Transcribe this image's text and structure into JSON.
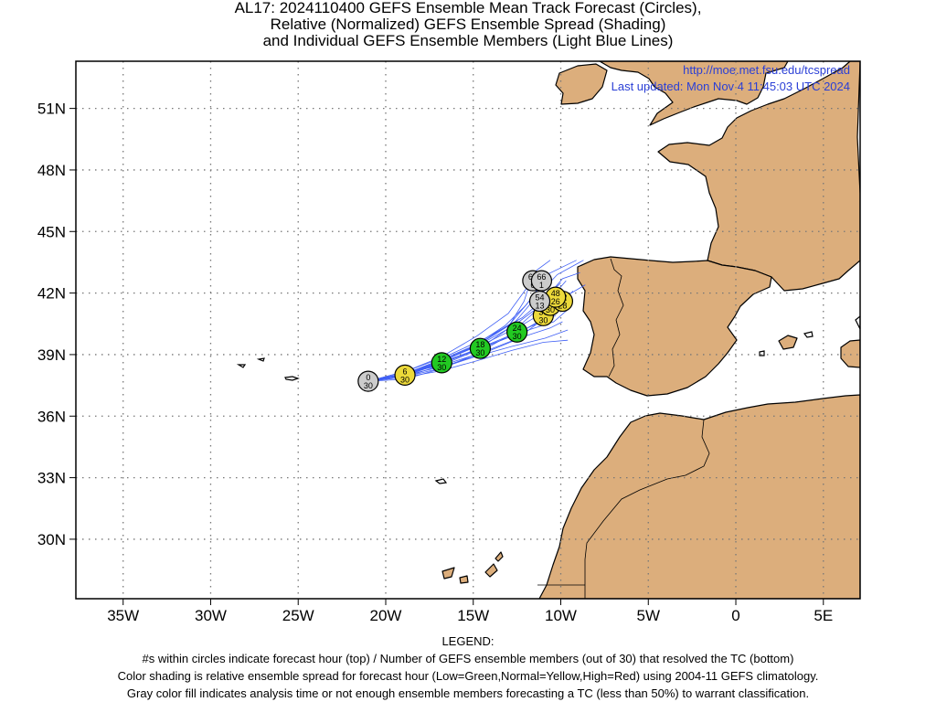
{
  "title": {
    "line1": "AL17: 2024110400 GEFS Ensemble Mean Track Forecast (Circles),",
    "line2": "Relative (Normalized) GEFS Ensemble Spread (Shading)",
    "line3": "and Individual GEFS Ensemble Members (Light Blue Lines)"
  },
  "map": {
    "url_text": "http://moe.met.fsu.edu/tcspread",
    "updated_text": "Last updated: Mon Nov 4 11:45:03 UTC 2024",
    "lon_ticks": [
      {
        "value": -35,
        "label": "35W"
      },
      {
        "value": -30,
        "label": "30W"
      },
      {
        "value": -25,
        "label": "25W"
      },
      {
        "value": -20,
        "label": "20W"
      },
      {
        "value": -15,
        "label": "15W"
      },
      {
        "value": -10,
        "label": "10W"
      },
      {
        "value": -5,
        "label": "5W"
      },
      {
        "value": 0,
        "label": "0"
      },
      {
        "value": 5,
        "label": "5E"
      }
    ],
    "lat_ticks": [
      {
        "value": 51,
        "label": "51N"
      },
      {
        "value": 48,
        "label": "48N"
      },
      {
        "value": 45,
        "label": "45N"
      },
      {
        "value": 42,
        "label": "42N"
      },
      {
        "value": 39,
        "label": "39N"
      },
      {
        "value": 36,
        "label": "36N"
      },
      {
        "value": 33,
        "label": "33N"
      },
      {
        "value": 30,
        "label": "30N"
      }
    ],
    "lon_range": [
      -37.7,
      7.1
    ],
    "lat_range": [
      27.1,
      53.3
    ],
    "colors": {
      "land": "#dcae7c",
      "coast": "#000000",
      "member_tracks": "#3f5ff5",
      "low_spread": "#22c922",
      "normal_spread": "#ecd93a",
      "high_spread": "#e02020",
      "analysis_gray": "#cccccc"
    },
    "mean_track": [
      {
        "hour": "0",
        "members": "30",
        "lon": -21.0,
        "lat": 37.7,
        "spread": "gray"
      },
      {
        "hour": "6",
        "members": "30",
        "lon": -18.9,
        "lat": 38.0,
        "spread": "normal"
      },
      {
        "hour": "12",
        "members": "30",
        "lon": -16.8,
        "lat": 38.6,
        "spread": "low"
      },
      {
        "hour": "18",
        "members": "30",
        "lon": -14.6,
        "lat": 39.3,
        "spread": "low"
      },
      {
        "hour": "24",
        "members": "30",
        "lon": -12.5,
        "lat": 40.1,
        "spread": "low"
      },
      {
        "hour": "30",
        "members": "30",
        "lon": -11.0,
        "lat": 40.9,
        "spread": "normal"
      },
      {
        "hour": "36",
        "members": "30",
        "lon": -10.6,
        "lat": 41.4,
        "spread": "normal"
      },
      {
        "hour": "42",
        "members": "28",
        "lon": -9.9,
        "lat": 41.6,
        "spread": "normal"
      },
      {
        "hour": "48",
        "members": "26",
        "lon": -10.3,
        "lat": 41.8,
        "spread": "normal"
      },
      {
        "hour": "54",
        "members": "13",
        "lon": -11.2,
        "lat": 41.6,
        "spread": "gray"
      },
      {
        "hour": "60",
        "members": "6",
        "lon": -11.6,
        "lat": 42.6,
        "spread": "gray"
      },
      {
        "hour": "66",
        "members": "1",
        "lon": -11.1,
        "lat": 42.6,
        "spread": "gray"
      }
    ],
    "member_tracks": [
      [
        [
          -21.0,
          37.7
        ],
        [
          -18.9,
          38.0
        ],
        [
          -16.8,
          38.4
        ],
        [
          -14.6,
          39.0
        ],
        [
          -12.6,
          39.7
        ],
        [
          -11.2,
          40.6
        ],
        [
          -10.6,
          41.7
        ],
        [
          -9.7,
          42.6
        ]
      ],
      [
        [
          -21.0,
          37.7
        ],
        [
          -18.9,
          38.1
        ],
        [
          -16.8,
          38.7
        ],
        [
          -14.7,
          39.5
        ],
        [
          -12.9,
          40.5
        ],
        [
          -11.7,
          41.7
        ],
        [
          -10.8,
          42.9
        ],
        [
          -9.1,
          43.6
        ]
      ],
      [
        [
          -21.0,
          37.7
        ],
        [
          -18.8,
          38.1
        ],
        [
          -16.7,
          38.8
        ],
        [
          -14.5,
          39.6
        ],
        [
          -12.6,
          40.6
        ],
        [
          -11.3,
          41.9
        ],
        [
          -10.2,
          42.9
        ],
        [
          -8.7,
          43.6
        ]
      ],
      [
        [
          -21.0,
          37.7
        ],
        [
          -18.9,
          37.9
        ],
        [
          -16.8,
          38.5
        ],
        [
          -14.8,
          39.2
        ],
        [
          -13.1,
          40.2
        ],
        [
          -12.1,
          41.6
        ],
        [
          -11.6,
          42.9
        ]
      ],
      [
        [
          -21.0,
          37.7
        ],
        [
          -19.0,
          37.9
        ],
        [
          -17.0,
          38.3
        ],
        [
          -14.9,
          38.9
        ],
        [
          -12.8,
          39.4
        ],
        [
          -10.9,
          39.8
        ],
        [
          -9.6,
          40.2
        ]
      ],
      [
        [
          -21.0,
          37.7
        ],
        [
          -18.9,
          37.9
        ],
        [
          -16.9,
          38.2
        ],
        [
          -14.8,
          38.7
        ],
        [
          -12.8,
          39.2
        ],
        [
          -11.0,
          39.6
        ],
        [
          -9.6,
          39.7
        ]
      ],
      [
        [
          -21.0,
          37.7
        ],
        [
          -18.8,
          38.0
        ],
        [
          -16.7,
          38.6
        ],
        [
          -14.6,
          39.3
        ],
        [
          -12.5,
          40.0
        ],
        [
          -10.9,
          40.8
        ],
        [
          -10.0,
          41.5
        ],
        [
          -9.3,
          42.1
        ]
      ],
      [
        [
          -21.0,
          37.7
        ],
        [
          -18.9,
          38.0
        ],
        [
          -16.6,
          38.7
        ],
        [
          -14.3,
          39.4
        ],
        [
          -12.2,
          40.1
        ],
        [
          -10.4,
          40.6
        ],
        [
          -9.6,
          41.2
        ]
      ],
      [
        [
          -21.0,
          37.7
        ],
        [
          -18.8,
          38.2
        ],
        [
          -16.6,
          38.9
        ],
        [
          -14.3,
          39.8
        ],
        [
          -12.2,
          40.8
        ],
        [
          -10.7,
          41.9
        ],
        [
          -9.9,
          42.7
        ],
        [
          -8.9,
          43.0
        ]
      ],
      [
        [
          -21.0,
          37.7
        ],
        [
          -19.0,
          38.0
        ],
        [
          -17.0,
          38.6
        ],
        [
          -15.0,
          39.4
        ],
        [
          -13.2,
          40.4
        ],
        [
          -12.0,
          41.4
        ],
        [
          -11.2,
          42.3
        ]
      ],
      [
        [
          -21.0,
          37.7
        ],
        [
          -18.9,
          38.1
        ],
        [
          -16.7,
          38.5
        ],
        [
          -14.5,
          39.1
        ],
        [
          -12.4,
          39.8
        ],
        [
          -10.6,
          40.3
        ],
        [
          -9.9,
          40.6
        ]
      ],
      [
        [
          -21.0,
          37.7
        ],
        [
          -18.7,
          38.1
        ],
        [
          -16.5,
          38.8
        ],
        [
          -14.2,
          39.6
        ],
        [
          -12.1,
          40.5
        ],
        [
          -10.5,
          41.3
        ],
        [
          -9.6,
          41.9
        ],
        [
          -8.6,
          42.4
        ]
      ],
      [
        [
          -21.0,
          37.7
        ],
        [
          -18.9,
          37.8
        ],
        [
          -16.9,
          38.3
        ],
        [
          -14.9,
          39.0
        ],
        [
          -13.0,
          39.9
        ],
        [
          -11.6,
          41.0
        ],
        [
          -10.9,
          42.2
        ]
      ],
      [
        [
          -21.0,
          37.7
        ],
        [
          -18.8,
          38.2
        ],
        [
          -16.8,
          38.9
        ],
        [
          -14.8,
          39.9
        ],
        [
          -13.0,
          41.0
        ],
        [
          -11.9,
          42.3
        ],
        [
          -11.4,
          43.1
        ],
        [
          -10.6,
          43.6
        ]
      ],
      [
        [
          -21.0,
          37.7
        ],
        [
          -18.9,
          38.0
        ],
        [
          -16.8,
          38.6
        ],
        [
          -14.7,
          39.3
        ],
        [
          -12.7,
          40.0
        ],
        [
          -11.1,
          40.6
        ],
        [
          -10.3,
          40.9
        ]
      ],
      [
        [
          -21.0,
          37.7
        ],
        [
          -18.8,
          38.0
        ],
        [
          -16.7,
          38.7
        ],
        [
          -14.6,
          39.5
        ],
        [
          -12.7,
          40.4
        ],
        [
          -11.3,
          41.3
        ],
        [
          -10.5,
          42.1
        ],
        [
          -10.0,
          42.5
        ]
      ]
    ]
  },
  "legend": {
    "heading": "LEGEND:",
    "line1": "#s within circles indicate forecast hour (top) / Number of GEFS ensemble members (out of 30) that resolved the TC (bottom)",
    "line2": "Color shading is relative ensemble spread for forecast hour (Low=Green,Normal=Yellow,High=Red) using 2004-11 GEFS climatology.",
    "line3": "Gray color fill indicates analysis time or not enough ensemble members forecasting a TC (less than 50%) to warrant classification."
  }
}
